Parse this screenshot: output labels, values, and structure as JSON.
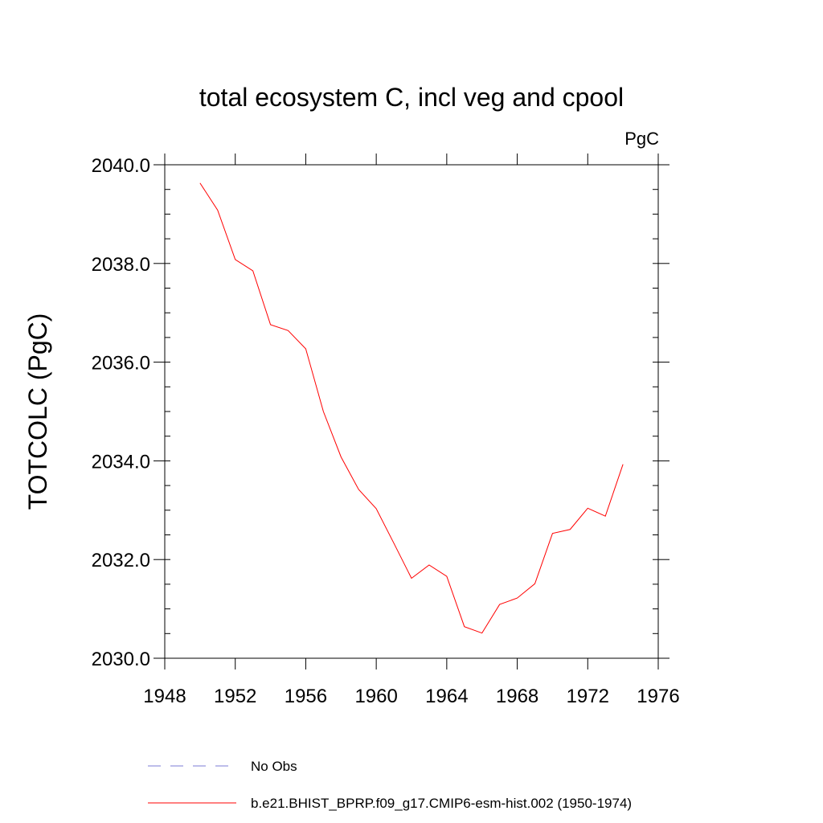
{
  "chart_data": {
    "type": "line",
    "title": "total ecosystem C, incl veg and cpool",
    "units": "PgC",
    "xlabel": "",
    "ylabel": "TOTCOLC  (PgC)",
    "xlim": [
      1948,
      1976
    ],
    "ylim": [
      2030.0,
      2040.0
    ],
    "x_ticks": [
      1948,
      1952,
      1956,
      1960,
      1964,
      1968,
      1972,
      1976
    ],
    "x_tick_labels": [
      "1948",
      "1952",
      "1956",
      "1960",
      "1964",
      "1968",
      "1972",
      "1976"
    ],
    "y_ticks": [
      2030.0,
      2032.0,
      2034.0,
      2036.0,
      2038.0,
      2040.0
    ],
    "y_tick_labels": [
      "2030.0",
      "2032.0",
      "2034.0",
      "2036.0",
      "2038.0",
      "2040.0"
    ],
    "series": [
      {
        "name": "b.e21.BHIST_BPRP.f09_g17.CMIP6-esm-hist.002 (1950-1974)",
        "color": "#ff0000",
        "x": [
          1950,
          1951,
          1952,
          1953,
          1954,
          1955,
          1956,
          1957,
          1958,
          1959,
          1960,
          1961,
          1962,
          1963,
          1964,
          1965,
          1966,
          1967,
          1968,
          1969,
          1970,
          1971,
          1972,
          1973,
          1974
        ],
        "values": [
          2039.63,
          2039.08,
          2038.08,
          2037.85,
          2036.76,
          2036.64,
          2036.27,
          2035.0,
          2034.08,
          2033.42,
          2033.03,
          2032.33,
          2031.62,
          2031.89,
          2031.66,
          2030.64,
          2030.51,
          2031.09,
          2031.22,
          2031.51,
          2032.53,
          2032.61,
          2033.04,
          2032.88,
          2033.93
        ]
      }
    ],
    "legend": [
      {
        "label": "No Obs",
        "color": "#7b7bd6",
        "style": "dashed"
      },
      {
        "label": "b.e21.BHIST_BPRP.f09_g17.CMIP6-esm-hist.002 (1950-1974)",
        "color": "#ff0000",
        "style": "solid"
      }
    ],
    "legend_position": "bottom"
  }
}
